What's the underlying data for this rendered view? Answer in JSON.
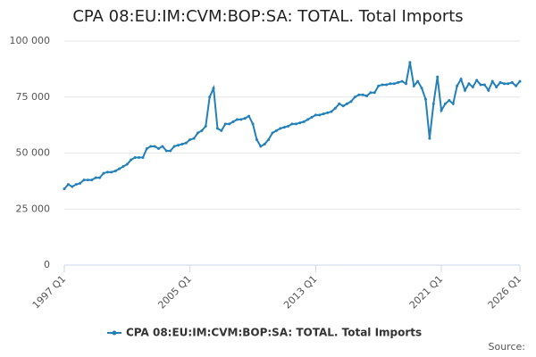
{
  "chart_data": {
    "type": "line",
    "title": "CPA 08:EU:IM:CVM:BOP:SA: TOTAL. Total Imports",
    "source": "Source:",
    "categories": [
      "1997 Q1",
      null,
      null,
      null,
      null,
      null,
      null,
      null,
      null,
      null,
      null,
      null,
      null,
      null,
      null,
      null,
      null,
      null,
      null,
      null,
      null,
      null,
      null,
      null,
      null,
      null,
      null,
      null,
      null,
      null,
      null,
      null,
      "2005 Q1",
      null,
      null,
      null,
      null,
      null,
      null,
      null,
      null,
      null,
      null,
      null,
      null,
      null,
      null,
      null,
      null,
      null,
      null,
      null,
      null,
      null,
      null,
      null,
      null,
      null,
      null,
      null,
      null,
      null,
      null,
      null,
      "2013 Q1",
      null,
      null,
      null,
      null,
      null,
      null,
      null,
      null,
      null,
      null,
      null,
      null,
      null,
      null,
      null,
      null,
      null,
      null,
      null,
      null,
      null,
      null,
      null,
      null,
      null,
      null,
      null,
      null,
      null,
      null,
      null,
      "2021 Q1",
      null,
      null,
      null,
      null,
      null,
      null,
      null,
      null,
      null,
      null,
      null,
      null,
      null,
      null,
      null,
      null,
      null,
      null,
      null,
      "2026 Q1"
    ],
    "series": [
      {
        "name": "CPA 08:EU:IM:CVM:BOP:SA: TOTAL. Total Imports",
        "color": "#2380b9",
        "values": [
          34000,
          36000,
          35000,
          36000,
          36500,
          38000,
          38000,
          38000,
          39000,
          39000,
          41000,
          41500,
          41500,
          42000,
          43000,
          44000,
          45000,
          47000,
          48000,
          48000,
          48000,
          52000,
          53000,
          53000,
          52000,
          53000,
          51000,
          51000,
          53000,
          53500,
          54000,
          54500,
          56000,
          56500,
          59000,
          60000,
          62000,
          75000,
          79000,
          61000,
          60000,
          63000,
          63000,
          64000,
          65000,
          65000,
          65500,
          66500,
          63000,
          56000,
          53000,
          54000,
          56000,
          59000,
          60000,
          61000,
          61500,
          62000,
          63000,
          63000,
          63500,
          64000,
          65000,
          66000,
          67000,
          67000,
          67500,
          68000,
          68500,
          70000,
          72000,
          71000,
          72000,
          73000,
          75000,
          76000,
          76000,
          75500,
          77000,
          77000,
          80000,
          80500,
          80500,
          81000,
          81000,
          81500,
          82000,
          81000,
          90500,
          80000,
          82000,
          79000,
          74000,
          56500,
          72000,
          84000,
          69000,
          72000,
          73500,
          72000,
          80000,
          83000,
          78000,
          81000,
          79500,
          82500,
          80500,
          80500,
          78000,
          82000,
          79500,
          81500,
          81000,
          81000,
          81500,
          80000,
          82000
        ]
      }
    ],
    "ylim": [
      0,
      100000
    ],
    "yticks": [
      0,
      {
        "value": 25000,
        "label": "25 000"
      },
      {
        "value": 50000,
        "label": "50 000"
      },
      {
        "value": 75000,
        "label": "75 000"
      },
      {
        "value": 100000,
        "label": "100 000"
      }
    ],
    "grid": true
  }
}
